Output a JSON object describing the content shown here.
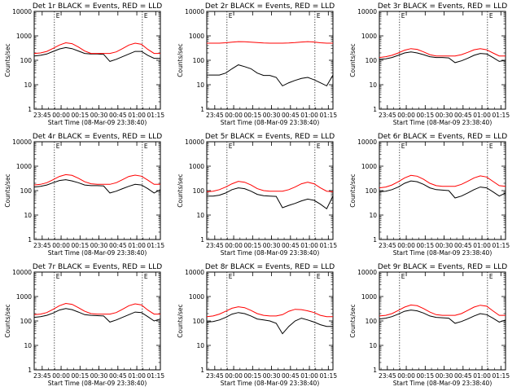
{
  "chart_data": {
    "type": "line",
    "layout": "3x3 grid of line plots",
    "y_scale": "log",
    "ylim": [
      1,
      10000
    ],
    "yticks": [
      "1",
      "10",
      "100",
      "1000",
      "10000"
    ],
    "ylabel": "Counts/sec",
    "xlabel": "Start Time (08-Mar-09 23:38:40)",
    "xlim_minutes": [
      0,
      100
    ],
    "xticks": [
      {
        "label": "23:45",
        "minutes": 6.33
      },
      {
        "label": "00:00",
        "minutes": 21.33
      },
      {
        "label": "00:15",
        "minutes": 36.33
      },
      {
        "label": "00:30",
        "minutes": 51.33
      },
      {
        "label": "00:45",
        "minutes": 66.33
      },
      {
        "label": "01:00",
        "minutes": 81.33
      },
      {
        "label": "01:15",
        "minutes": 96.33
      }
    ],
    "markers": [
      {
        "minutes": 16,
        "label": "E"
      },
      {
        "minutes": 85.7,
        "label": "E"
      }
    ],
    "x_minutes": [
      0,
      5,
      10,
      15,
      20,
      25,
      30,
      35,
      40,
      45,
      50,
      55,
      60,
      65,
      70,
      75,
      80,
      85,
      90,
      95,
      100
    ],
    "colors": {
      "events": "#000000",
      "lld": "#ff0000"
    },
    "panels": [
      {
        "title": "Det 1r BLACK = Events, RED = LLD",
        "series": [
          {
            "name": "Events",
            "color": "#000000",
            "values": [
              150,
              160,
              180,
              230,
              290,
              330,
              300,
              240,
              190,
              180,
              180,
              175,
              90,
              110,
              140,
              180,
              230,
              230,
              160,
              120,
              120
            ]
          },
          {
            "name": "LLD",
            "color": "#ff0000",
            "values": [
              190,
              200,
              230,
              310,
              420,
              520,
              480,
              350,
              240,
              190,
              190,
              190,
              190,
              220,
              300,
              420,
              500,
              450,
              280,
              190,
              190
            ]
          }
        ]
      },
      {
        "title": "Det 2r BLACK = Events, RED = LLD",
        "series": [
          {
            "name": "Events",
            "color": "#000000",
            "values": [
              25,
              25,
              25,
              30,
              45,
              65,
              55,
              45,
              30,
              24,
              24,
              20,
              9,
              12,
              15,
              18,
              20,
              16,
              12,
              9,
              25
            ]
          },
          {
            "name": "LLD",
            "color": "#ff0000",
            "values": [
              500,
              500,
              500,
              520,
              550,
              580,
              570,
              550,
              530,
              510,
              500,
              500,
              500,
              510,
              530,
              560,
              580,
              560,
              520,
              500,
              500
            ]
          }
        ]
      },
      {
        "title": "Det 3r BLACK = Events, RED = LLD",
        "series": [
          {
            "name": "Events",
            "color": "#000000",
            "values": [
              110,
              115,
              130,
              160,
              200,
              220,
              200,
              170,
              140,
              130,
              130,
              125,
              80,
              95,
              120,
              160,
              190,
              180,
              130,
              90,
              100
            ]
          },
          {
            "name": "LLD",
            "color": "#ff0000",
            "values": [
              130,
              140,
              160,
              200,
              260,
              300,
              280,
              220,
              170,
              150,
              150,
              150,
              150,
              170,
              210,
              270,
              300,
              270,
              200,
              150,
              150
            ]
          }
        ]
      },
      {
        "title": "Det 4r BLACK = Events, RED = LLD",
        "series": [
          {
            "name": "Events",
            "color": "#000000",
            "values": [
              140,
              150,
              170,
              210,
              260,
              280,
              250,
              210,
              170,
              160,
              160,
              155,
              80,
              95,
              120,
              150,
              180,
              170,
              120,
              80,
              110
            ]
          },
          {
            "name": "LLD",
            "color": "#ff0000",
            "values": [
              170,
              180,
              210,
              280,
              380,
              450,
              420,
              320,
              230,
              190,
              180,
              180,
              180,
              210,
              280,
              380,
              430,
              390,
              270,
              180,
              180
            ]
          }
        ]
      },
      {
        "title": "Det 5r BLACK = Events, RED = LLD",
        "series": [
          {
            "name": "Events",
            "color": "#000000",
            "values": [
              60,
              60,
              65,
              80,
              110,
              130,
              120,
              95,
              70,
              62,
              60,
              58,
              20,
              25,
              30,
              38,
              45,
              40,
              28,
              18,
              60
            ]
          },
          {
            "name": "LLD",
            "color": "#ff0000",
            "values": [
              90,
              95,
              110,
              140,
              190,
              240,
              220,
              170,
              120,
              100,
              95,
              95,
              95,
              110,
              140,
              190,
              220,
              190,
              130,
              95,
              90
            ]
          }
        ]
      },
      {
        "title": "Det 6r BLACK = Events, RED = LLD",
        "series": [
          {
            "name": "Events",
            "color": "#000000",
            "values": [
              90,
              95,
              110,
              140,
              200,
              250,
              230,
              180,
              130,
              110,
              105,
              100,
              50,
              60,
              80,
              110,
              140,
              130,
              90,
              60,
              80
            ]
          },
          {
            "name": "LLD",
            "color": "#ff0000",
            "values": [
              130,
              140,
              170,
              230,
              330,
              420,
              390,
              290,
              200,
              160,
              150,
              150,
              150,
              180,
              240,
              330,
              400,
              360,
              240,
              160,
              150
            ]
          }
        ]
      },
      {
        "title": "Det 7r BLACK = Events, RED = LLD",
        "series": [
          {
            "name": "Events",
            "color": "#000000",
            "values": [
              140,
              150,
              170,
              210,
              280,
              320,
              290,
              230,
              180,
              170,
              165,
              160,
              90,
              110,
              140,
              180,
              230,
              220,
              150,
              100,
              120
            ]
          },
          {
            "name": "LLD",
            "color": "#ff0000",
            "values": [
              180,
              190,
              220,
              300,
              420,
              520,
              480,
              350,
              250,
              200,
              190,
              190,
              190,
              220,
              300,
              420,
              500,
              450,
              280,
              190,
              190
            ]
          }
        ]
      },
      {
        "title": "Det 8r BLACK = Events, RED = LLD",
        "series": [
          {
            "name": "Events",
            "color": "#000000",
            "values": [
              90,
              95,
              110,
              140,
              190,
              220,
              200,
              160,
              120,
              110,
              100,
              80,
              30,
              60,
              100,
              130,
              110,
              90,
              70,
              60,
              60
            ]
          },
          {
            "name": "LLD",
            "color": "#ff0000",
            "values": [
              150,
              160,
              190,
              250,
              330,
              380,
              350,
              270,
              200,
              170,
              160,
              160,
              180,
              250,
              300,
              290,
              260,
              220,
              170,
              150,
              150
            ]
          }
        ]
      },
      {
        "title": "Det 9r BLACK = Events, RED = LLD",
        "series": [
          {
            "name": "Events",
            "color": "#000000",
            "values": [
              120,
              130,
              150,
              190,
              250,
              280,
              260,
              210,
              160,
              140,
              135,
              130,
              80,
              95,
              120,
              160,
              200,
              180,
              130,
              90,
              110
            ]
          },
          {
            "name": "LLD",
            "color": "#ff0000",
            "values": [
              160,
              170,
              200,
              270,
              370,
              450,
              420,
              320,
              230,
              180,
              170,
              170,
              170,
              200,
              270,
              370,
              440,
              400,
              260,
              170,
              170
            ]
          }
        ]
      }
    ]
  }
}
